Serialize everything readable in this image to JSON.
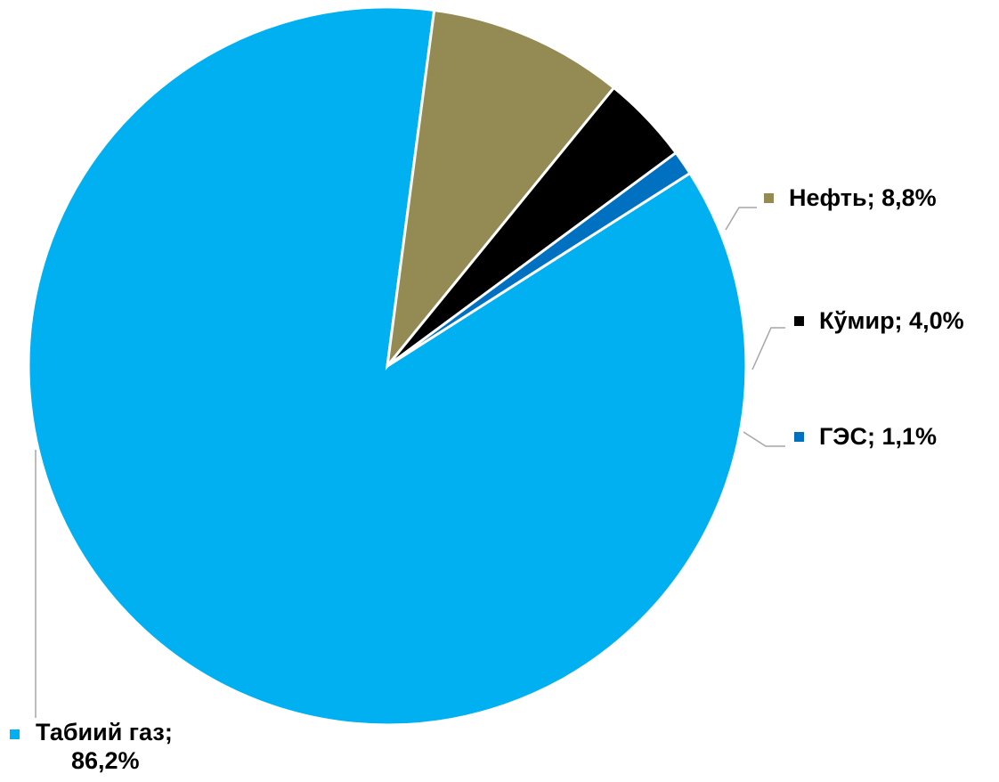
{
  "chart_data": {
    "type": "pie",
    "slices": [
      {
        "name": "Табиий газ",
        "value": 86.2,
        "label_name": "Табиий газ;",
        "label_value": "86,2%",
        "color": "#00B0F0"
      },
      {
        "name": "Нефть",
        "value": 8.8,
        "label_name": "Нефть; 8,8%",
        "label_value": "",
        "color": "#948A54"
      },
      {
        "name": "Кўмир",
        "value": 4.0,
        "label_name": "Кўмир; 4,0%",
        "label_value": "",
        "color": "#000000"
      },
      {
        "name": "ГЭС",
        "value": 1.1,
        "label_name": "ГЭС; 1,1%",
        "label_value": "",
        "color": "#0070C0"
      }
    ]
  }
}
